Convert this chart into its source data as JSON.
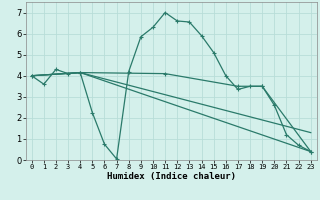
{
  "xlabel": "Humidex (Indice chaleur)",
  "background_color": "#d4f0eb",
  "grid_color": "#b8ddd8",
  "line_color": "#2a7a6a",
  "xlim": [
    -0.5,
    23.5
  ],
  "ylim": [
    0,
    7.5
  ],
  "xticks": [
    0,
    1,
    2,
    3,
    4,
    5,
    6,
    7,
    8,
    9,
    10,
    11,
    12,
    13,
    14,
    15,
    16,
    17,
    18,
    19,
    20,
    21,
    22,
    23
  ],
  "yticks": [
    0,
    1,
    2,
    3,
    4,
    5,
    6,
    7
  ],
  "series": [
    {
      "x": [
        0,
        1,
        2,
        3,
        4,
        5,
        6,
        7,
        8,
        9,
        10,
        11,
        12,
        13,
        14,
        15,
        16,
        17,
        18,
        19,
        20,
        21,
        22,
        23
      ],
      "y": [
        4.0,
        3.6,
        4.3,
        4.1,
        4.15,
        2.25,
        0.75,
        0.05,
        4.2,
        5.85,
        6.3,
        7.0,
        6.6,
        6.55,
        5.9,
        5.1,
        4.0,
        3.35,
        3.5,
        3.5,
        2.6,
        1.2,
        0.7,
        0.4
      ],
      "has_markers": true
    },
    {
      "x": [
        0,
        4,
        23
      ],
      "y": [
        4.0,
        4.15,
        0.4
      ],
      "has_markers": false
    },
    {
      "x": [
        0,
        4,
        23
      ],
      "y": [
        4.0,
        4.15,
        1.3
      ],
      "has_markers": false
    },
    {
      "x": [
        0,
        4,
        11,
        17,
        19,
        23
      ],
      "y": [
        4.0,
        4.15,
        4.1,
        3.5,
        3.5,
        0.4
      ],
      "has_markers": true
    }
  ]
}
